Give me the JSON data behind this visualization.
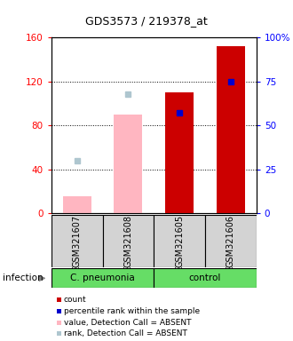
{
  "title": "GDS3573 / 219378_at",
  "samples": [
    "GSM321607",
    "GSM321608",
    "GSM321605",
    "GSM321606"
  ],
  "ylim_left": [
    0,
    160
  ],
  "ylim_right": [
    0,
    100
  ],
  "yticks_left": [
    0,
    40,
    80,
    120,
    160
  ],
  "ytick_labels_left": [
    "0",
    "40",
    "80",
    "120",
    "160"
  ],
  "ytick_labels_right": [
    "0",
    "25",
    "50",
    "75",
    "100%"
  ],
  "count_values": [
    0,
    0,
    110,
    152
  ],
  "count_color": "#cc0000",
  "percentile_values_pct": [
    0,
    0,
    57,
    75
  ],
  "percentile_color": "#0000cc",
  "absent_value_values": [
    15,
    90,
    0,
    0
  ],
  "absent_value_color": "#ffb6c1",
  "absent_rank_values_pct": [
    30,
    68,
    0,
    0
  ],
  "absent_rank_color": "#aec6cf",
  "bar_width": 0.55,
  "sample_bg_color": "#d3d3d3",
  "cpneumonia_color": "#66dd66",
  "control_color": "#66dd66",
  "legend_items": [
    {
      "color": "#cc0000",
      "label": "count"
    },
    {
      "color": "#0000cc",
      "label": "percentile rank within the sample"
    },
    {
      "color": "#ffb6c1",
      "label": "value, Detection Call = ABSENT"
    },
    {
      "color": "#aec6cf",
      "label": "rank, Detection Call = ABSENT"
    }
  ]
}
